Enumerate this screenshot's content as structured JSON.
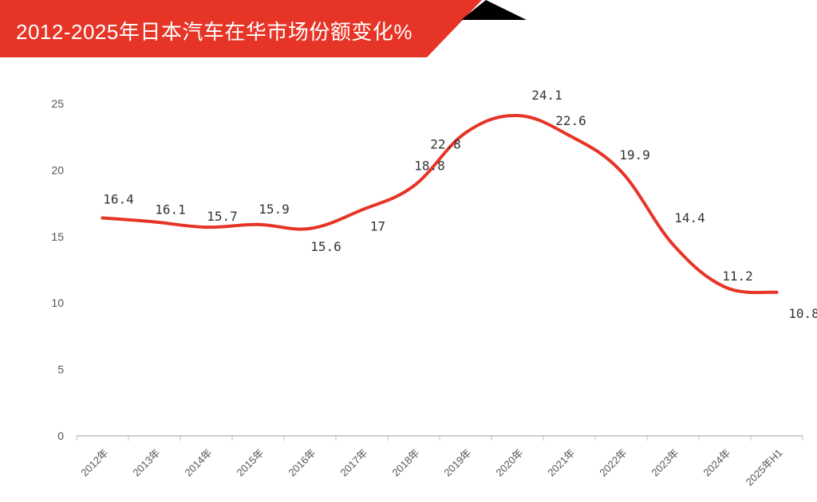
{
  "title": "2012-2025年日本汽车在华市场份额变化%",
  "colors": {
    "banner": "#e63527",
    "line": "#e63527",
    "triangle": "#000000",
    "axis": "#bfbfbf"
  },
  "chart_data": {
    "type": "line",
    "title": "2012-2025年日本汽车在华市场份额变化%",
    "categories": [
      "2012年",
      "2013年",
      "2014年",
      "2015年",
      "2016年",
      "2017年",
      "2018年",
      "2019年",
      "2020年",
      "2021年",
      "2022年",
      "2023年",
      "2024年",
      "2025年H1"
    ],
    "values": [
      16.4,
      16.1,
      15.7,
      15.9,
      15.6,
      17,
      18.8,
      22.8,
      24.1,
      22.6,
      19.9,
      14.4,
      11.2,
      10.8
    ],
    "data_labels": [
      "16.4",
      "16.1",
      "15.7",
      "15.9",
      "15.6",
      "17",
      "18.8",
      "22.8",
      "24.1",
      "22.6",
      "19.9",
      "14.4",
      "11.2",
      "10.8"
    ],
    "y_ticks": [
      "0",
      "5",
      "10",
      "15",
      "20",
      "25"
    ],
    "ylim": [
      0,
      25
    ],
    "grid": false,
    "smooth": true,
    "xlabel": "",
    "ylabel": ""
  }
}
